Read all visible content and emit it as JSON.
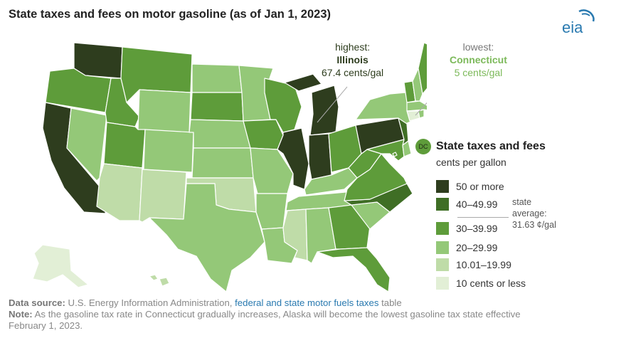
{
  "title": "State taxes and fees on motor gasoline (as of Jan 1, 2023)",
  "logo_text": "eia",
  "highest": {
    "prefix": "highest:",
    "state": "Illinois",
    "value": "67.4 cents/gal"
  },
  "lowest": {
    "prefix": "lowest:",
    "state": "Connecticut",
    "value": "5 cents/gal"
  },
  "dc_label": "DC",
  "legend": {
    "title": "State taxes and fees",
    "subtitle": "cents per gallon",
    "items": [
      {
        "label": "50 or more",
        "color": "#2e3d1e"
      },
      {
        "label": "40–49.99",
        "color": "#3f6e25"
      },
      {
        "label": "30–39.99",
        "color": "#5e9c3a"
      },
      {
        "label": "20–29.99",
        "color": "#94c878"
      },
      {
        "label": "10.01–19.99",
        "color": "#bfdca8"
      },
      {
        "label": "10 cents or less",
        "color": "#e2efd6"
      }
    ],
    "average_line1": "state",
    "average_line2": "average:",
    "average_line3": "31.63 ¢/gal"
  },
  "footer": {
    "source_label": "Data source:",
    "source_text": " U.S. Energy Information Administration, ",
    "source_link": "federal and state motor fuels taxes",
    "source_tail": " table",
    "note_label": "Note:",
    "note_text": " As the gasoline tax rate in Connecticut gradually increases, Alaska will become the lowest gasoline tax state effective",
    "note_text2": "February 1, 2023."
  },
  "states": [
    {
      "id": "WA",
      "bin": 0
    },
    {
      "id": "OR",
      "bin": 2
    },
    {
      "id": "CA",
      "bin": 0
    },
    {
      "id": "NV",
      "bin": 3
    },
    {
      "id": "ID",
      "bin": 2
    },
    {
      "id": "MT",
      "bin": 2
    },
    {
      "id": "WY",
      "bin": 3
    },
    {
      "id": "UT",
      "bin": 2
    },
    {
      "id": "AZ",
      "bin": 4
    },
    {
      "id": "CO",
      "bin": 3
    },
    {
      "id": "NM",
      "bin": 4
    },
    {
      "id": "ND",
      "bin": 3
    },
    {
      "id": "SD",
      "bin": 2
    },
    {
      "id": "NE",
      "bin": 3
    },
    {
      "id": "KS",
      "bin": 3
    },
    {
      "id": "OK",
      "bin": 4
    },
    {
      "id": "TX",
      "bin": 3
    },
    {
      "id": "MN",
      "bin": 3
    },
    {
      "id": "IA",
      "bin": 2
    },
    {
      "id": "MO",
      "bin": 3
    },
    {
      "id": "AR",
      "bin": 3
    },
    {
      "id": "LA",
      "bin": 3
    },
    {
      "id": "WI",
      "bin": 2
    },
    {
      "id": "IL",
      "bin": 0
    },
    {
      "id": "MI",
      "bin": 0
    },
    {
      "id": "IN",
      "bin": 0
    },
    {
      "id": "OH",
      "bin": 2
    },
    {
      "id": "KY",
      "bin": 3
    },
    {
      "id": "TN",
      "bin": 3
    },
    {
      "id": "MS",
      "bin": 4
    },
    {
      "id": "AL",
      "bin": 3
    },
    {
      "id": "GA",
      "bin": 2
    },
    {
      "id": "FL",
      "bin": 2
    },
    {
      "id": "SC",
      "bin": 3
    },
    {
      "id": "NC",
      "bin": 1
    },
    {
      "id": "VA",
      "bin": 2
    },
    {
      "id": "WV",
      "bin": 2
    },
    {
      "id": "PA",
      "bin": 0
    },
    {
      "id": "NY",
      "bin": 3
    },
    {
      "id": "NJ",
      "bin": 1
    },
    {
      "id": "MD",
      "bin": 2
    },
    {
      "id": "DE",
      "bin": 3
    },
    {
      "id": "VT",
      "bin": 2
    },
    {
      "id": "NH",
      "bin": 3
    },
    {
      "id": "ME",
      "bin": 2
    },
    {
      "id": "MA",
      "bin": 3
    },
    {
      "id": "CT",
      "bin": 5
    },
    {
      "id": "RI",
      "bin": 3
    },
    {
      "id": "AK",
      "bin": 5
    },
    {
      "id": "HI",
      "bin": 4
    },
    {
      "id": "DC",
      "bin": 2
    }
  ]
}
